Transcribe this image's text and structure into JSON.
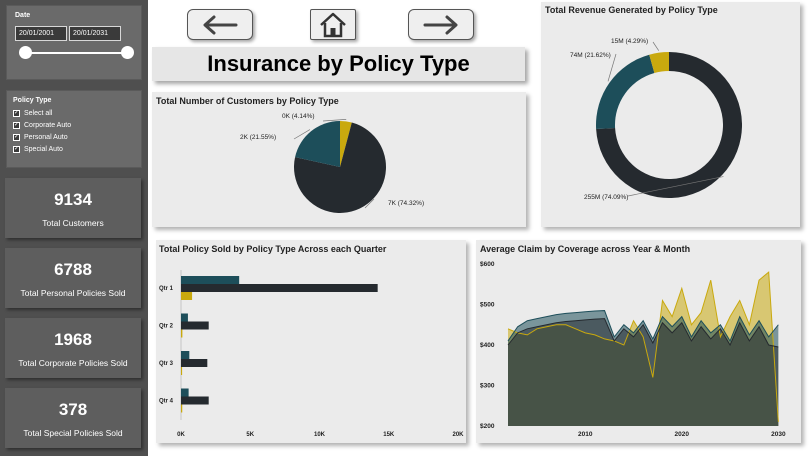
{
  "colors": {
    "navy": "#1d4e5a",
    "dark": "#252a2f",
    "gold": "#c9a90e",
    "panel": "#ebebeb"
  },
  "filters": {
    "date": {
      "title": "Date",
      "start": "20/01/2001",
      "end": "20/01/2031"
    },
    "policy": {
      "title": "Policy Type",
      "options": [
        {
          "label": "Select all",
          "checked": true
        },
        {
          "label": "Corporate Auto",
          "checked": true
        },
        {
          "label": "Personal Auto",
          "checked": true
        },
        {
          "label": "Special Auto",
          "checked": true
        }
      ]
    }
  },
  "kpis": [
    {
      "value": "9134",
      "label": "Total Customers"
    },
    {
      "value": "6788",
      "label": "Total Personal Policies Sold"
    },
    {
      "value": "1968",
      "label": "Total Corporate Policies Sold"
    },
    {
      "value": "378",
      "label": "Total Special Policies Sold"
    }
  ],
  "nav": {
    "back_icon": "arrow-left-icon",
    "home_icon": "home-icon",
    "forward_icon": "arrow-right-icon"
  },
  "page_title": "Insurance by Policy Type",
  "chart_data": [
    {
      "type": "pie",
      "title": "Total Number of Customers by Policy Type",
      "slices": [
        {
          "value": 6788,
          "label": "7K (74.32%)",
          "color": "#252a2f"
        },
        {
          "value": 1968,
          "label": "2K (21.55%)",
          "color": "#1d4e5a"
        },
        {
          "value": 378,
          "label": "0K (4.14%)",
          "color": "#c9a90e"
        }
      ]
    },
    {
      "type": "pie",
      "subtype": "donut",
      "title": "Total Revenue Generated by Policy Type",
      "slices": [
        {
          "value": 255,
          "label": "255M (74.09%)",
          "color": "#252a2f"
        },
        {
          "value": 74,
          "label": "74M (21.62%)",
          "color": "#1d4e5a"
        },
        {
          "value": 15,
          "label": "15M (4.29%)",
          "color": "#c9a90e"
        }
      ]
    },
    {
      "type": "bar",
      "orientation": "horizontal",
      "title": "Total Policy Sold by Policy Type Across each Quarter",
      "categories": [
        "Qtr 1",
        "Qtr 2",
        "Qtr 3",
        "Qtr 4"
      ],
      "series": [
        {
          "color": "#1d4e5a",
          "values": [
            4200,
            500,
            600,
            550
          ]
        },
        {
          "color": "#252a2f",
          "values": [
            14200,
            2000,
            1900,
            2000
          ]
        },
        {
          "color": "#c9a90e",
          "values": [
            800,
            100,
            80,
            90
          ]
        }
      ],
      "xlim": [
        0,
        20000
      ],
      "xticks": [
        "0K",
        "5K",
        "10K",
        "15K",
        "20K"
      ],
      "xtick_values": [
        0,
        5000,
        10000,
        15000,
        20000
      ]
    },
    {
      "type": "area",
      "title": "Average Claim by Coverage across Year & Month",
      "ylim": [
        200,
        600
      ],
      "yticks": [
        "$200",
        "$300",
        "$400",
        "$500",
        "$600"
      ],
      "ytick_values": [
        200,
        300,
        400,
        500,
        600
      ],
      "xlim": [
        2002,
        2031
      ],
      "xticks": [
        "2010",
        "2020",
        "2030"
      ],
      "xtick_values": [
        2010,
        2020,
        2030
      ],
      "x": [
        2002,
        2003,
        2004,
        2005,
        2006,
        2007,
        2008,
        2009,
        2010,
        2011,
        2012,
        2013,
        2014,
        2015,
        2016,
        2017,
        2018,
        2019,
        2020,
        2021,
        2022,
        2023,
        2024,
        2025,
        2026,
        2027,
        2028,
        2029,
        2030
      ],
      "series": [
        {
          "color": "#c9a90e",
          "values": [
            440,
            430,
            425,
            440,
            445,
            450,
            450,
            440,
            430,
            425,
            415,
            410,
            400,
            460,
            420,
            320,
            510,
            470,
            540,
            450,
            480,
            560,
            420,
            470,
            510,
            450,
            560,
            580,
            210
          ]
        },
        {
          "color": "#1d4e5a",
          "values": [
            410,
            445,
            460,
            465,
            470,
            475,
            478,
            480,
            482,
            484,
            485,
            420,
            450,
            430,
            460,
            415,
            470,
            445,
            470,
            420,
            460,
            430,
            450,
            410,
            470,
            425,
            460,
            420,
            450
          ]
        },
        {
          "color": "#252a2f",
          "values": [
            400,
            430,
            440,
            445,
            450,
            455,
            458,
            460,
            462,
            464,
            465,
            410,
            440,
            420,
            450,
            405,
            455,
            430,
            455,
            410,
            445,
            415,
            440,
            400,
            455,
            410,
            445,
            400,
            395
          ]
        }
      ]
    }
  ]
}
